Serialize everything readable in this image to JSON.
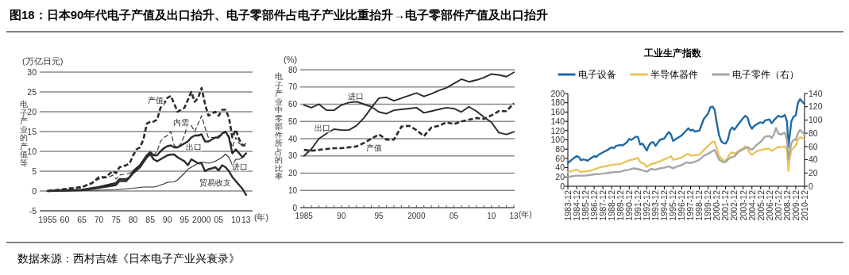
{
  "chart_data": [
    {
      "type": "line",
      "title": "图18：日本90年代电子产值及出口抬升、电子零部件占电子产业比重抬升→电子零部件产值及出口抬升",
      "ylabel": "电子产业的产值等",
      "xlabel": "(年)",
      "xlim": [
        1952.7,
        2014.9
      ],
      "ylim": [
        -5,
        30
      ],
      "yticks": [
        -5,
        0,
        5,
        10,
        15,
        20,
        25,
        30
      ],
      "grid": "y",
      "legend": false,
      "xticks": [
        {
          "value": 1955,
          "label": "1955"
        },
        {
          "value": 1960,
          "label": "60"
        },
        {
          "value": 1965,
          "label": "65"
        },
        {
          "value": 1970,
          "label": "70"
        },
        {
          "value": 1975,
          "label": "75"
        },
        {
          "value": 1980,
          "label": "80"
        },
        {
          "value": 1985,
          "label": "85"
        },
        {
          "value": 1990,
          "label": "90"
        },
        {
          "value": 1995,
          "label": "95"
        },
        {
          "value": 2000,
          "label": "2000"
        },
        {
          "value": 2005,
          "label": "05"
        },
        {
          "value": 2010,
          "label": "10"
        },
        {
          "value": 2013,
          "label": "13"
        }
      ],
      "series": [
        {
          "name": "产值",
          "color": "#2b2b2b",
          "line_style": "dashed",
          "x": [
            1955,
            1960,
            1965,
            1968,
            1970,
            1972,
            1974,
            1975,
            1976,
            1978,
            1979,
            1980,
            1981,
            1982,
            1983,
            1984,
            1985,
            1986,
            1987,
            1988,
            1989,
            1990,
            1991,
            1992,
            1993,
            1994,
            1995,
            1996,
            1997,
            1998,
            1999,
            2000,
            2001,
            2002,
            2003,
            2004,
            2005,
            2006,
            2007,
            2008,
            2009,
            2010,
            2011,
            2012,
            2013
          ],
          "values": [
            0,
            0.5,
            1,
            2,
            3.5,
            3.5,
            5,
            4.5,
            6,
            6.5,
            7,
            9,
            10.5,
            11,
            13,
            17,
            17.5,
            17.5,
            18,
            21,
            22,
            23.5,
            24,
            22,
            20,
            20.5,
            21,
            23,
            25,
            22.5,
            23.5,
            26,
            22,
            19,
            19.5,
            20,
            19,
            20.5,
            20.5,
            18.5,
            13.5,
            15.5,
            13,
            11.5,
            11.5
          ]
        },
        {
          "name": "内需",
          "color": "#2b2b2b",
          "line_style": "dashed",
          "x": [
            1955,
            1965,
            1970,
            1973,
            1974,
            1975,
            1976,
            1979,
            1980,
            1982,
            1984,
            1985,
            1986,
            1987,
            1988,
            1989,
            1990,
            1991,
            1992,
            1993,
            1994,
            1995,
            1996,
            1997,
            1998,
            1999,
            2000,
            2001,
            2002,
            2003,
            2004,
            2005,
            2006,
            2007,
            2008,
            2009,
            2010,
            2011,
            2012,
            2013
          ],
          "values": [
            0,
            0.8,
            3,
            3.5,
            4,
            3,
            4,
            4.5,
            5,
            6.5,
            9,
            9.5,
            9,
            10,
            12.5,
            13.5,
            14,
            15,
            11.5,
            11,
            12,
            14,
            17,
            16.5,
            15,
            17,
            19,
            16,
            13.5,
            13.5,
            13.5,
            14,
            14,
            15,
            14,
            11,
            13.5,
            12,
            11.5,
            12
          ]
        },
        {
          "name": "出口",
          "color": "#2b2b2b",
          "line_style": "solid",
          "x": [
            1955,
            1965,
            1970,
            1974,
            1975,
            1976,
            1978,
            1979,
            1980,
            1982,
            1984,
            1985,
            1986,
            1987,
            1988,
            1989,
            1990,
            1991,
            1992,
            1993,
            1994,
            1995,
            1996,
            1997,
            1998,
            1999,
            2000,
            2001,
            2002,
            2003,
            2004,
            2005,
            2006,
            2007,
            2008,
            2009,
            2010,
            2011,
            2012,
            2013
          ],
          "values": [
            0,
            0.3,
            1,
            1.8,
            2,
            3,
            3,
            3.5,
            5,
            6.5,
            9,
            9.8,
            9,
            9,
            10,
            10.8,
            11.3,
            11.5,
            11,
            11,
            11.5,
            12,
            12.5,
            13.5,
            14,
            14,
            14.3,
            12.5,
            12.5,
            13,
            13.5,
            13.5,
            14.5,
            15,
            13.5,
            9.5,
            10.5,
            9.5,
            8.5,
            9.5
          ]
        },
        {
          "name": "进口",
          "color": "#2b2b2b",
          "line_style": "solid",
          "x": [
            1955,
            1970,
            1975,
            1980,
            1983,
            1986,
            1987,
            1989,
            1990,
            1992,
            1993,
            1995,
            1996,
            1997,
            1999,
            2000,
            2001,
            2002,
            2003,
            2004,
            2005,
            2006,
            2007,
            2008,
            2009,
            2010,
            2011,
            2012,
            2013
          ],
          "values": [
            0,
            0.2,
            0.3,
            0.7,
            1,
            1,
            1.2,
            1.8,
            2.2,
            2.3,
            2.8,
            4.5,
            5.5,
            6,
            7,
            7.3,
            7.2,
            7,
            7.2,
            7.5,
            8,
            8.5,
            9.3,
            8.5,
            6.5,
            8,
            8,
            8.5,
            9.5
          ]
        },
        {
          "name": "贸易收支",
          "color": "#2b2b2b",
          "line_style": "solid",
          "x": [
            1955,
            1965,
            1970,
            1975,
            1976,
            1978,
            1980,
            1982,
            1984,
            1985,
            1986,
            1987,
            1988,
            1989,
            1990,
            1991,
            1992,
            1993,
            1994,
            1995,
            1996,
            1997,
            1998,
            1999,
            2000,
            2001,
            2002,
            2003,
            2004,
            2005,
            2006,
            2007,
            2008,
            2009,
            2010,
            2011,
            2012,
            2013
          ],
          "values": [
            0,
            0.2,
            0.8,
            1.5,
            2.5,
            2.5,
            4.5,
            6,
            8.5,
            9.3,
            8,
            7.5,
            8,
            8.5,
            9,
            9.2,
            9.2,
            8.5,
            8,
            7.5,
            6.5,
            8,
            7.5,
            7,
            7,
            5,
            5.5,
            5.7,
            6,
            5.2,
            6.5,
            6,
            5,
            3.5,
            2.5,
            1.5,
            0.5,
            -1
          ]
        }
      ],
      "annotations": [
        "(万亿日元)",
        "数据来源：西村吉雄《日本电子产业兴衰录》"
      ]
    },
    {
      "type": "line",
      "ylabel": "电子产业中零部件所占的比率",
      "xlabel": "(年)",
      "xlim": [
        1984.5,
        2013.1
      ],
      "ylim": [
        0,
        80
      ],
      "yticks": [
        0,
        10,
        20,
        30,
        40,
        50,
        60,
        70,
        80
      ],
      "grid": "y",
      "legend": false,
      "xticks": [
        {
          "value": 1985,
          "label": "1985"
        },
        {
          "value": 1990,
          "label": "90"
        },
        {
          "value": 1995,
          "label": "95"
        },
        {
          "value": 2000,
          "label": "2000"
        },
        {
          "value": 2005,
          "label": "05"
        },
        {
          "value": 2010,
          "label": "10"
        },
        {
          "value": 2013,
          "label": "13"
        }
      ],
      "x": [
        1985,
        1986,
        1987,
        1988,
        1989,
        1990,
        1991,
        1992,
        1993,
        1994,
        1995,
        1996,
        1997,
        1998,
        1999,
        2000,
        2001,
        2002,
        2003,
        2004,
        2005,
        2006,
        2007,
        2008,
        2009,
        2010,
        2011,
        2012,
        2013
      ],
      "series": [
        {
          "name": "出口",
          "color": "#2b2b2b",
          "line_style": "solid",
          "values": [
            30,
            34,
            40,
            43,
            45.5,
            45,
            45,
            47.5,
            52,
            58,
            63.5,
            64,
            62,
            63.5,
            65,
            66.5,
            64.5,
            66,
            68,
            69.5,
            72,
            74.5,
            73,
            74,
            75.5,
            77.5,
            77,
            76,
            78.5
          ]
        },
        {
          "name": "进口",
          "color": "#2b2b2b",
          "line_style": "solid",
          "values": [
            59.5,
            58,
            60,
            56.5,
            56.5,
            59.5,
            61,
            61.5,
            60,
            58.5,
            55.5,
            54.5,
            56.5,
            57,
            57.5,
            58,
            55,
            56,
            57,
            58,
            57.5,
            55.5,
            58.5,
            56,
            52.5,
            49.5,
            43.5,
            42.5,
            44
          ]
        },
        {
          "name": "产值",
          "color": "#2b2b2b",
          "line_style": "dashed",
          "values": [
            33.5,
            33,
            33.5,
            34,
            34.5,
            34.5,
            35,
            35.5,
            37.5,
            40,
            42.5,
            39.5,
            39.5,
            47,
            47.5,
            45,
            41.5,
            46.5,
            47.5,
            49.5,
            48.5,
            50,
            51,
            52,
            51.5,
            53.5,
            56,
            56,
            60.5
          ]
        }
      ],
      "annotations": [
        "(%)"
      ]
    },
    {
      "type": "line",
      "title": "工业生产指数",
      "legend": "top",
      "xlim": [
        "1983-12",
        "2010-12"
      ],
      "ylim": [
        0,
        200
      ],
      "yticks": [
        0,
        20,
        40,
        60,
        80,
        100,
        120,
        140,
        160,
        180,
        200
      ],
      "y2lim": [
        0,
        140
      ],
      "y2ticks": [
        0,
        20,
        40,
        60,
        80,
        100,
        120,
        140
      ],
      "xticks": [
        "1983-12",
        "1984-12",
        "1985-12",
        "1986-12",
        "1987-12",
        "1988-12",
        "1989-12",
        "1990-12",
        "1991-12",
        "1992-12",
        "1993-12",
        "1994-12",
        "1995-12",
        "1996-12",
        "1997-12",
        "1998-12",
        "1999-12",
        "2000-12",
        "2001-12",
        "2002-12",
        "2003-12",
        "2004-12",
        "2005-12",
        "2006-12",
        "2007-12",
        "2008-12",
        "2009-12",
        "2010-12"
      ],
      "series": [
        {
          "name": "电子设备",
          "color": "#1f6aa5",
          "x": [
            "1983-12",
            "1984-06",
            "1984-12",
            "1985-03",
            "1985-06",
            "1985-09",
            "1985-12",
            "1986-03",
            "1986-09",
            "1986-12",
            "1987-03",
            "1987-06",
            "1987-12",
            "1988-06",
            "1988-12",
            "1989-03",
            "1989-06",
            "1989-12",
            "1990-03",
            "1990-09",
            "1990-12",
            "1991-03",
            "1991-09",
            "1991-12",
            "1992-03",
            "1992-06",
            "1992-09",
            "1992-12",
            "1993-03",
            "1993-06",
            "1993-09",
            "1993-12",
            "1994-06",
            "1994-12",
            "1995-06",
            "1995-09",
            "1995-12",
            "1996-06",
            "1996-12",
            "1997-06",
            "1997-09",
            "1997-12",
            "1998-03",
            "1998-06",
            "1998-12",
            "1999-03",
            "1999-06",
            "1999-12",
            "2000-03",
            "2000-06",
            "2000-09",
            "2000-12",
            "2001-03",
            "2001-06",
            "2001-09",
            "2001-12",
            "2002-03",
            "2002-06",
            "2002-09",
            "2002-12",
            "2003-06",
            "2003-12",
            "2004-03",
            "2004-06",
            "2004-09",
            "2004-12",
            "2005-03",
            "2005-09",
            "2005-12",
            "2006-03",
            "2006-06",
            "2006-12",
            "2007-03",
            "2007-06",
            "2007-12",
            "2008-03",
            "2008-06",
            "2008-09",
            "2008-12",
            "2009-02",
            "2009-03",
            "2009-06",
            "2009-09",
            "2009-12",
            "2010-03",
            "2010-06",
            "2010-09",
            "2010-12"
          ],
          "values": [
            50,
            58,
            65,
            63,
            56,
            58,
            57,
            55,
            62,
            65,
            63,
            68,
            73,
            78,
            84,
            82,
            87,
            89,
            88,
            95,
            102,
            100,
            107,
            106,
            90,
            92,
            85,
            77,
            88,
            94,
            95,
            87,
            100,
            103,
            117,
            112,
            98,
            104,
            110,
            120,
            125,
            120,
            122,
            118,
            120,
            132,
            145,
            157,
            170,
            172,
            165,
            135,
            110,
            97,
            93,
            92,
            100,
            120,
            127,
            122,
            135,
            147,
            152,
            148,
            132,
            124,
            130,
            136,
            138,
            136,
            142,
            144,
            136,
            142,
            152,
            150,
            150,
            154,
            140,
            84,
            100,
            140,
            150,
            153,
            180,
            188,
            182,
            178
          ]
        },
        {
          "name": "半导体器件",
          "color": "#e8c45c",
          "x": [
            "1983-12",
            "1984-12",
            "1985-06",
            "1985-12",
            "1986-06",
            "1986-12",
            "1987-06",
            "1987-12",
            "1988-12",
            "1989-12",
            "1990-06",
            "1990-12",
            "1991-06",
            "1991-12",
            "1992-03",
            "1992-09",
            "1992-12",
            "1993-06",
            "1993-12",
            "1994-06",
            "1994-12",
            "1995-06",
            "1995-09",
            "1995-12",
            "1996-06",
            "1996-12",
            "1997-06",
            "1997-09",
            "1997-12",
            "1998-06",
            "1998-12",
            "1999-06",
            "1999-12",
            "2000-06",
            "2000-09",
            "2000-12",
            "2001-03",
            "2001-06",
            "2001-09",
            "2001-12",
            "2002-03",
            "2002-06",
            "2002-09",
            "2002-12",
            "2003-06",
            "2003-12",
            "2004-03",
            "2004-06",
            "2004-09",
            "2004-12",
            "2005-06",
            "2005-12",
            "2006-06",
            "2006-12",
            "2007-03",
            "2007-09",
            "2007-12",
            "2008-03",
            "2008-09",
            "2008-12",
            "2009-02",
            "2009-03",
            "2009-06",
            "2009-12",
            "2010-03",
            "2010-06",
            "2010-12"
          ],
          "values": [
            30,
            36,
            31,
            32,
            33,
            36,
            40,
            42,
            46,
            48,
            52,
            56,
            58,
            61,
            52,
            48,
            42,
            48,
            50,
            54,
            58,
            62,
            65,
            57,
            59,
            62,
            68,
            70,
            66,
            67,
            68,
            78,
            87,
            96,
            96,
            82,
            65,
            60,
            56,
            55,
            62,
            70,
            73,
            70,
            76,
            82,
            86,
            82,
            72,
            68,
            75,
            78,
            80,
            81,
            76,
            82,
            85,
            84,
            86,
            78,
            33,
            55,
            78,
            88,
            100,
            106,
            102
          ]
        },
        {
          "name": "电子零件（右）",
          "color": "#a6a6a6",
          "axis": "y2",
          "x": [
            "1983-12",
            "1984-12",
            "1985-12",
            "1986-12",
            "1987-12",
            "1988-12",
            "1989-12",
            "1990-06",
            "1990-12",
            "1991-06",
            "1991-12",
            "1992-06",
            "1992-12",
            "1993-06",
            "1993-12",
            "1994-06",
            "1994-12",
            "1995-06",
            "1995-12",
            "1996-06",
            "1996-12",
            "1997-06",
            "1997-12",
            "1998-06",
            "1998-12",
            "1999-06",
            "1999-12",
            "2000-06",
            "2000-09",
            "2000-12",
            "2001-03",
            "2001-09",
            "2001-12",
            "2002-06",
            "2002-12",
            "2003-06",
            "2003-12",
            "2004-06",
            "2004-12",
            "2005-06",
            "2005-12",
            "2006-06",
            "2006-12",
            "2007-03",
            "2007-06",
            "2007-09",
            "2007-12",
            "2008-03",
            "2008-09",
            "2008-12",
            "2009-02",
            "2009-03",
            "2009-06",
            "2009-09",
            "2009-12",
            "2010-03",
            "2010-06",
            "2010-12"
          ],
          "values": [
            14,
            16,
            16,
            18,
            19,
            21,
            22,
            24,
            25,
            27,
            26,
            24,
            22,
            26,
            25,
            27,
            28,
            30,
            27,
            30,
            32,
            36,
            35,
            37,
            40,
            46,
            49,
            53,
            55,
            48,
            40,
            36,
            37,
            43,
            45,
            52,
            56,
            59,
            55,
            62,
            67,
            75,
            76,
            73,
            78,
            88,
            80,
            78,
            81,
            70,
            40,
            48,
            65,
            70,
            70,
            80,
            85,
            78
          ]
        }
      ]
    }
  ]
}
